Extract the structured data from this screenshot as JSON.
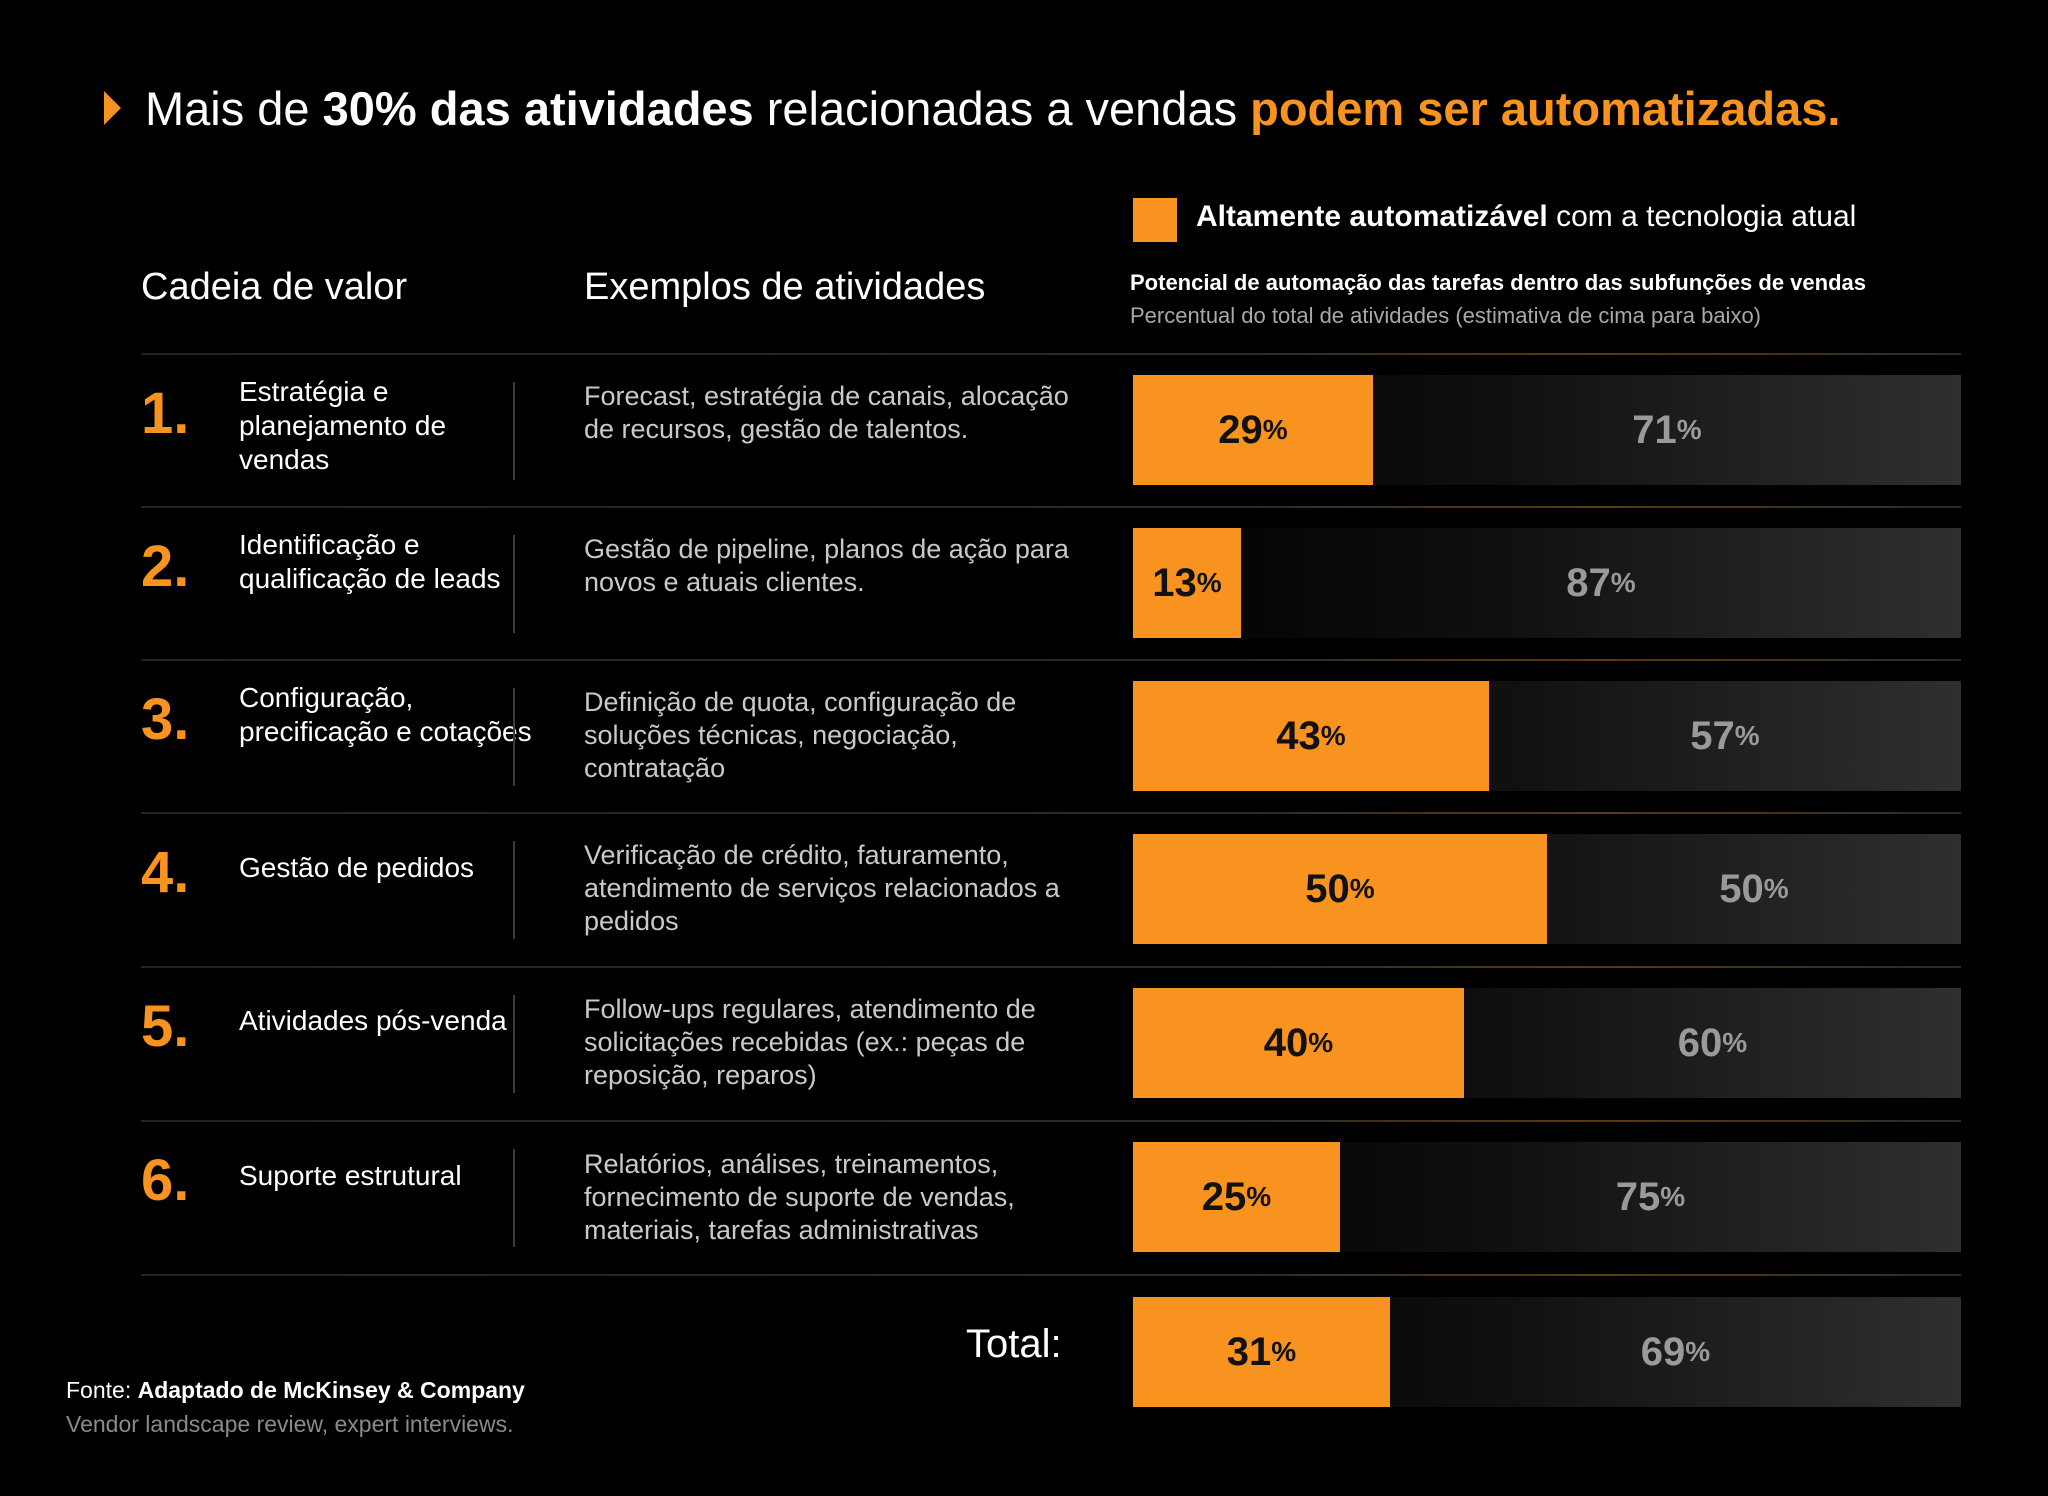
{
  "headline": {
    "prefix": "Mais de ",
    "bold": "30% das atividades",
    "middle": " relacionadas a vendas ",
    "accent": "podem ser automatizadas."
  },
  "legend": {
    "bold": "Altamente automatizável",
    "rest": " com a tecnologia atual",
    "color": "#F7931E"
  },
  "columns": {
    "value_chain": "Cadeia de valor",
    "examples": "Exemplos de atividades"
  },
  "chart_header": {
    "title": "Potencial de automação das tarefas dentro das subfunções de vendas",
    "subtitle": "Percentual do total de atividades (estimativa de cima para baixo)"
  },
  "rows": [
    {
      "num": "1.",
      "label": "Estratégia e planejamento de vendas",
      "examples": "Forecast, estratégia de canais, alocação de recursos, gestão de talentos."
    },
    {
      "num": "2.",
      "label": "Identificação e qualificação de leads",
      "examples": "Gestão de pipeline, planos de ação para novos e atuais clientes."
    },
    {
      "num": "3.",
      "label": "Configuração, precificação e cotações",
      "examples": "Definição de quota, configuração de soluções técnicas, negociação, contratação"
    },
    {
      "num": "4.",
      "label": "Gestão de pedidos",
      "examples": "Verificação de crédito, faturamento, atendimento de serviços relacionados a pedidos"
    },
    {
      "num": "5.",
      "label": "Atividades pós-venda",
      "examples": "Follow-ups regulares, atendimento de solicitações recebidas (ex.: peças de reposição, reparos)"
    },
    {
      "num": "6.",
      "label": "Suporte estrutural",
      "examples": "Relatórios, análises, treinamentos, fornecimento de suporte de vendas, materiais, tarefas administrativas"
    }
  ],
  "total_label": "Total:",
  "source": {
    "prefix": "Fonte: ",
    "bold": "Adaptado de McKinsey & Company",
    "note": "Vendor landscape review, expert interviews."
  },
  "chart_data": {
    "type": "bar",
    "orientation": "horizontal",
    "stacked": true,
    "categories": [
      "1.",
      "2.",
      "3.",
      "4.",
      "5.",
      "6.",
      "Total:"
    ],
    "series": [
      {
        "name": "Altamente automatizável",
        "values": [
          29,
          13,
          43,
          50,
          40,
          25,
          31
        ],
        "color": "#F7931E"
      },
      {
        "name": "",
        "values": [
          71,
          87,
          57,
          50,
          60,
          75,
          69
        ],
        "color": "#2f2f2f"
      }
    ],
    "unit": "%",
    "xlim": [
      0,
      100
    ]
  }
}
